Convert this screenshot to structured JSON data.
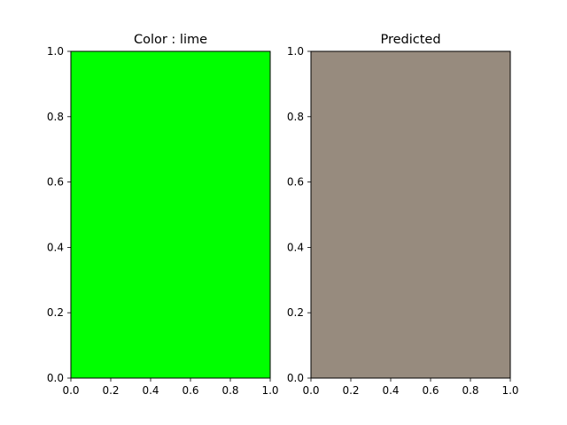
{
  "chart_data": [
    {
      "type": "heatmap",
      "title": "Color : lime",
      "fill_color": "#00ff00",
      "xlim": [
        0,
        1
      ],
      "ylim": [
        0,
        1
      ],
      "xticks": [
        0.0,
        0.2,
        0.4,
        0.6,
        0.8,
        1.0
      ],
      "yticks": [
        0.0,
        0.2,
        0.4,
        0.6,
        0.8,
        1.0
      ],
      "xtick_labels": [
        "0.0",
        "0.2",
        "0.4",
        "0.6",
        "0.8",
        "1.0"
      ],
      "ytick_labels": [
        "0.0",
        "0.2",
        "0.4",
        "0.6",
        "0.8",
        "1.0"
      ],
      "grid": false
    },
    {
      "type": "heatmap",
      "title": "Predicted",
      "fill_color": "#978b7e",
      "xlim": [
        0,
        1
      ],
      "ylim": [
        0,
        1
      ],
      "xticks": [
        0.0,
        0.2,
        0.4,
        0.6,
        0.8,
        1.0
      ],
      "yticks": [
        0.0,
        0.2,
        0.4,
        0.6,
        0.8,
        1.0
      ],
      "xtick_labels": [
        "0.0",
        "0.2",
        "0.4",
        "0.6",
        "0.8",
        "1.0"
      ],
      "ytick_labels": [
        "0.0",
        "0.2",
        "0.4",
        "0.6",
        "0.8",
        "1.0"
      ],
      "grid": false
    }
  ]
}
